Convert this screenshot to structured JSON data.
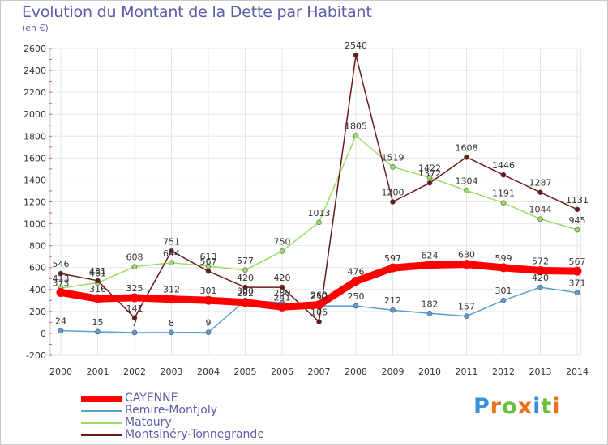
{
  "title": "Evolution du Montant de la Dette par Habitant",
  "unit": "(en €)",
  "logo": {
    "text": "Proxiti",
    "colors": [
      "#3a8fd8",
      "#e8731c",
      "#6cbf3a",
      "#e8731c",
      "#3a8fd8",
      "#6cbf3a",
      "#e8731c"
    ]
  },
  "chart_data": {
    "type": "line",
    "x": [
      "2000",
      "2001",
      "2002",
      "2003",
      "2004",
      "2005",
      "2006",
      "2007",
      "2008",
      "2009",
      "2010",
      "2011",
      "2012",
      "2013",
      "2014"
    ],
    "ylim": [
      -200,
      2600
    ],
    "yticks": [
      -200,
      0,
      200,
      400,
      600,
      800,
      1000,
      1200,
      1400,
      1600,
      1800,
      2000,
      2200,
      2400,
      2600
    ],
    "grid": true,
    "legend": "bottom-left",
    "series": [
      {
        "name": "CAYENNE",
        "color": "#ff0000",
        "values": [
          373,
          316,
          325,
          312,
          301,
          282,
          241,
          260,
          476,
          597,
          624,
          630,
          599,
          572,
          567
        ]
      },
      {
        "name": "Remire-Montjoly",
        "color": "#5a9fd4",
        "values": [
          24,
          15,
          7,
          8,
          9,
          300,
          280,
          250,
          250,
          212,
          182,
          157,
          301,
          420,
          371
        ]
      },
      {
        "name": "Matoury",
        "color": "#99dd66",
        "values": [
          413,
          461,
          608,
          644,
          613,
          577,
          750,
          1013,
          1805,
          1519,
          1422,
          1304,
          1191,
          1044,
          945
        ]
      },
      {
        "name": "Montsinéry-Tonnegrande",
        "color": "#6b1a1a",
        "values": [
          546,
          481,
          141,
          751,
          567,
          420,
          420,
          106,
          2540,
          1200,
          1372,
          1608,
          1446,
          1287,
          1131
        ]
      }
    ],
    "labels": [
      {
        "x": 0,
        "y": 546,
        "text": "546"
      },
      {
        "x": 0,
        "y": 413,
        "text": "413"
      },
      {
        "x": 0,
        "y": 373,
        "text": "373"
      },
      {
        "x": 0,
        "y": 24,
        "text": "24"
      },
      {
        "x": 1,
        "y": 481,
        "text": "481"
      },
      {
        "x": 1,
        "y": 461,
        "text": "461"
      },
      {
        "x": 1,
        "y": 316,
        "text": "316"
      },
      {
        "x": 1,
        "y": 15,
        "text": "15"
      },
      {
        "x": 2,
        "y": 608,
        "text": "608"
      },
      {
        "x": 2,
        "y": 325,
        "text": "325"
      },
      {
        "x": 2,
        "y": 141,
        "text": "141"
      },
      {
        "x": 2,
        "y": 7,
        "text": "7"
      },
      {
        "x": 3,
        "y": 751,
        "text": "751"
      },
      {
        "x": 3,
        "y": 644,
        "text": "644"
      },
      {
        "x": 3,
        "y": 312,
        "text": "312"
      },
      {
        "x": 3,
        "y": 8,
        "text": "8"
      },
      {
        "x": 4,
        "y": 613,
        "text": "613"
      },
      {
        "x": 4,
        "y": 567,
        "text": "567"
      },
      {
        "x": 4,
        "y": 301,
        "text": "301"
      },
      {
        "x": 4,
        "y": 9,
        "text": "9"
      },
      {
        "x": 5,
        "y": 577,
        "text": "577"
      },
      {
        "x": 5,
        "y": 420,
        "text": "420"
      },
      {
        "x": 5,
        "y": 300,
        "text": "300"
      },
      {
        "x": 5,
        "y": 282,
        "text": "282"
      },
      {
        "x": 6,
        "y": 750,
        "text": "750"
      },
      {
        "x": 6,
        "y": 420,
        "text": "420"
      },
      {
        "x": 6,
        "y": 280,
        "text": "280"
      },
      {
        "x": 6,
        "y": 241,
        "text": "241"
      },
      {
        "x": 7,
        "y": 1013,
        "text": "1013"
      },
      {
        "x": 7,
        "y": 260,
        "text": "260"
      },
      {
        "x": 7,
        "y": 250,
        "text": "250"
      },
      {
        "x": 7,
        "y": 106,
        "text": "106"
      },
      {
        "x": 8,
        "y": 2540,
        "text": "2540"
      },
      {
        "x": 8,
        "y": 1805,
        "text": "1805"
      },
      {
        "x": 8,
        "y": 476,
        "text": "476"
      },
      {
        "x": 8,
        "y": 250,
        "text": "250"
      },
      {
        "x": 9,
        "y": 1519,
        "text": "1519"
      },
      {
        "x": 9,
        "y": 1200,
        "text": "1200"
      },
      {
        "x": 9,
        "y": 597,
        "text": "597"
      },
      {
        "x": 9,
        "y": 212,
        "text": "212"
      },
      {
        "x": 10,
        "y": 1422,
        "text": "1422"
      },
      {
        "x": 10,
        "y": 1372,
        "text": "1372"
      },
      {
        "x": 10,
        "y": 624,
        "text": "624"
      },
      {
        "x": 10,
        "y": 182,
        "text": "182"
      },
      {
        "x": 11,
        "y": 1608,
        "text": "1608"
      },
      {
        "x": 11,
        "y": 1304,
        "text": "1304"
      },
      {
        "x": 11,
        "y": 630,
        "text": "630"
      },
      {
        "x": 11,
        "y": 157,
        "text": "157"
      },
      {
        "x": 12,
        "y": 1446,
        "text": "1446"
      },
      {
        "x": 12,
        "y": 1191,
        "text": "1191"
      },
      {
        "x": 12,
        "y": 599,
        "text": "599"
      },
      {
        "x": 12,
        "y": 301,
        "text": "301"
      },
      {
        "x": 13,
        "y": 1287,
        "text": "1287"
      },
      {
        "x": 13,
        "y": 1044,
        "text": "1044"
      },
      {
        "x": 13,
        "y": 572,
        "text": "572"
      },
      {
        "x": 13,
        "y": 420,
        "text": "420"
      },
      {
        "x": 14,
        "y": 1131,
        "text": "1131"
      },
      {
        "x": 14,
        "y": 945,
        "text": "945"
      },
      {
        "x": 14,
        "y": 567,
        "text": "567"
      },
      {
        "x": 14,
        "y": 371,
        "text": "371"
      }
    ]
  }
}
